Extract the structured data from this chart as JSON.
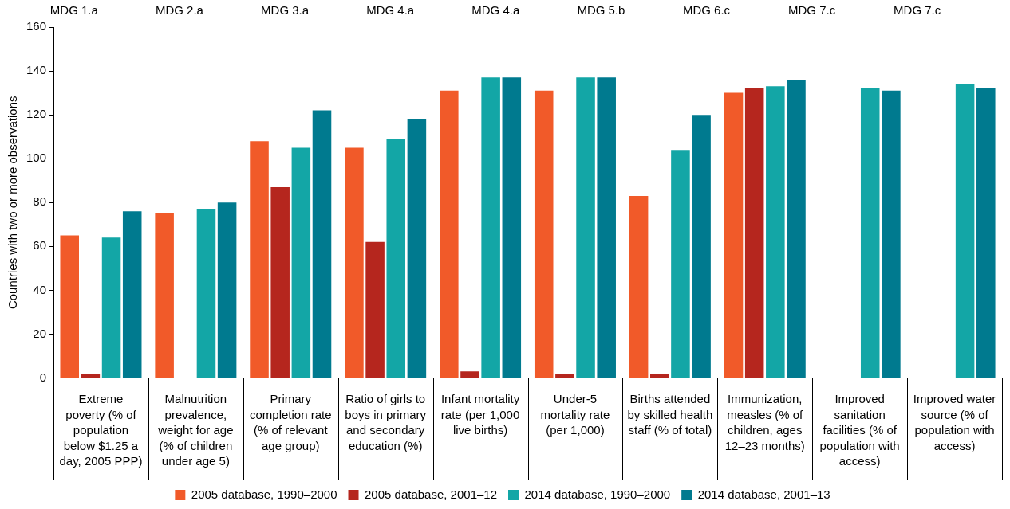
{
  "chart_data": {
    "type": "bar",
    "ylabel": "Countries with two or more observations",
    "categories": [
      "Extreme poverty (% of population below $1.25 a day, 2005 PPP)",
      "Malnutrition prevalence, weight for age (% of children under age 5)",
      "Primary completion rate (% of relevant age group)",
      "Ratio of girls to boys in primary and secondary education (%)",
      "Infant mortality rate (per 1,000 live births)",
      "Under-5 mortality rate (per 1,000)",
      "Births attended by skilled health staff (% of total)",
      "Immunization, measles (% of children, ages 12–23 months)",
      "Improved sanitation facilities (% of population with access)",
      "Improved water source (% of population with access)"
    ],
    "series": [
      {
        "name": "2005 database, 1990–2000",
        "color": "#f15a29",
        "values": [
          65,
          75,
          108,
          105,
          131,
          131,
          83,
          130,
          null,
          null
        ]
      },
      {
        "name": "2005 database, 2001–12",
        "color": "#b5261e",
        "values": [
          2,
          null,
          87,
          62,
          3,
          2,
          2,
          132,
          null,
          null
        ]
      },
      {
        "name": "2014 database, 1990–2000",
        "color": "#13a6a6",
        "values": [
          64,
          77,
          105,
          109,
          137,
          137,
          104,
          133,
          132,
          134
        ]
      },
      {
        "name": "2014 database, 2001–13",
        "color": "#007a8f",
        "values": [
          76,
          80,
          122,
          118,
          137,
          137,
          120,
          136,
          131,
          132
        ]
      }
    ],
    "ylim": [
      0,
      160
    ],
    "yticks": [
      0,
      20,
      40,
      60,
      80,
      100,
      120,
      140,
      160
    ],
    "grid": false,
    "legend": "bottom",
    "annotations": [
      "MDG 1.a",
      "MDG 2.a",
      "MDG 3.a",
      "MDG 4.a",
      "MDG 4.a",
      "MDG 5.b",
      "MDG 6.c",
      "MDG 7.c",
      "MDG 7.c"
    ]
  }
}
